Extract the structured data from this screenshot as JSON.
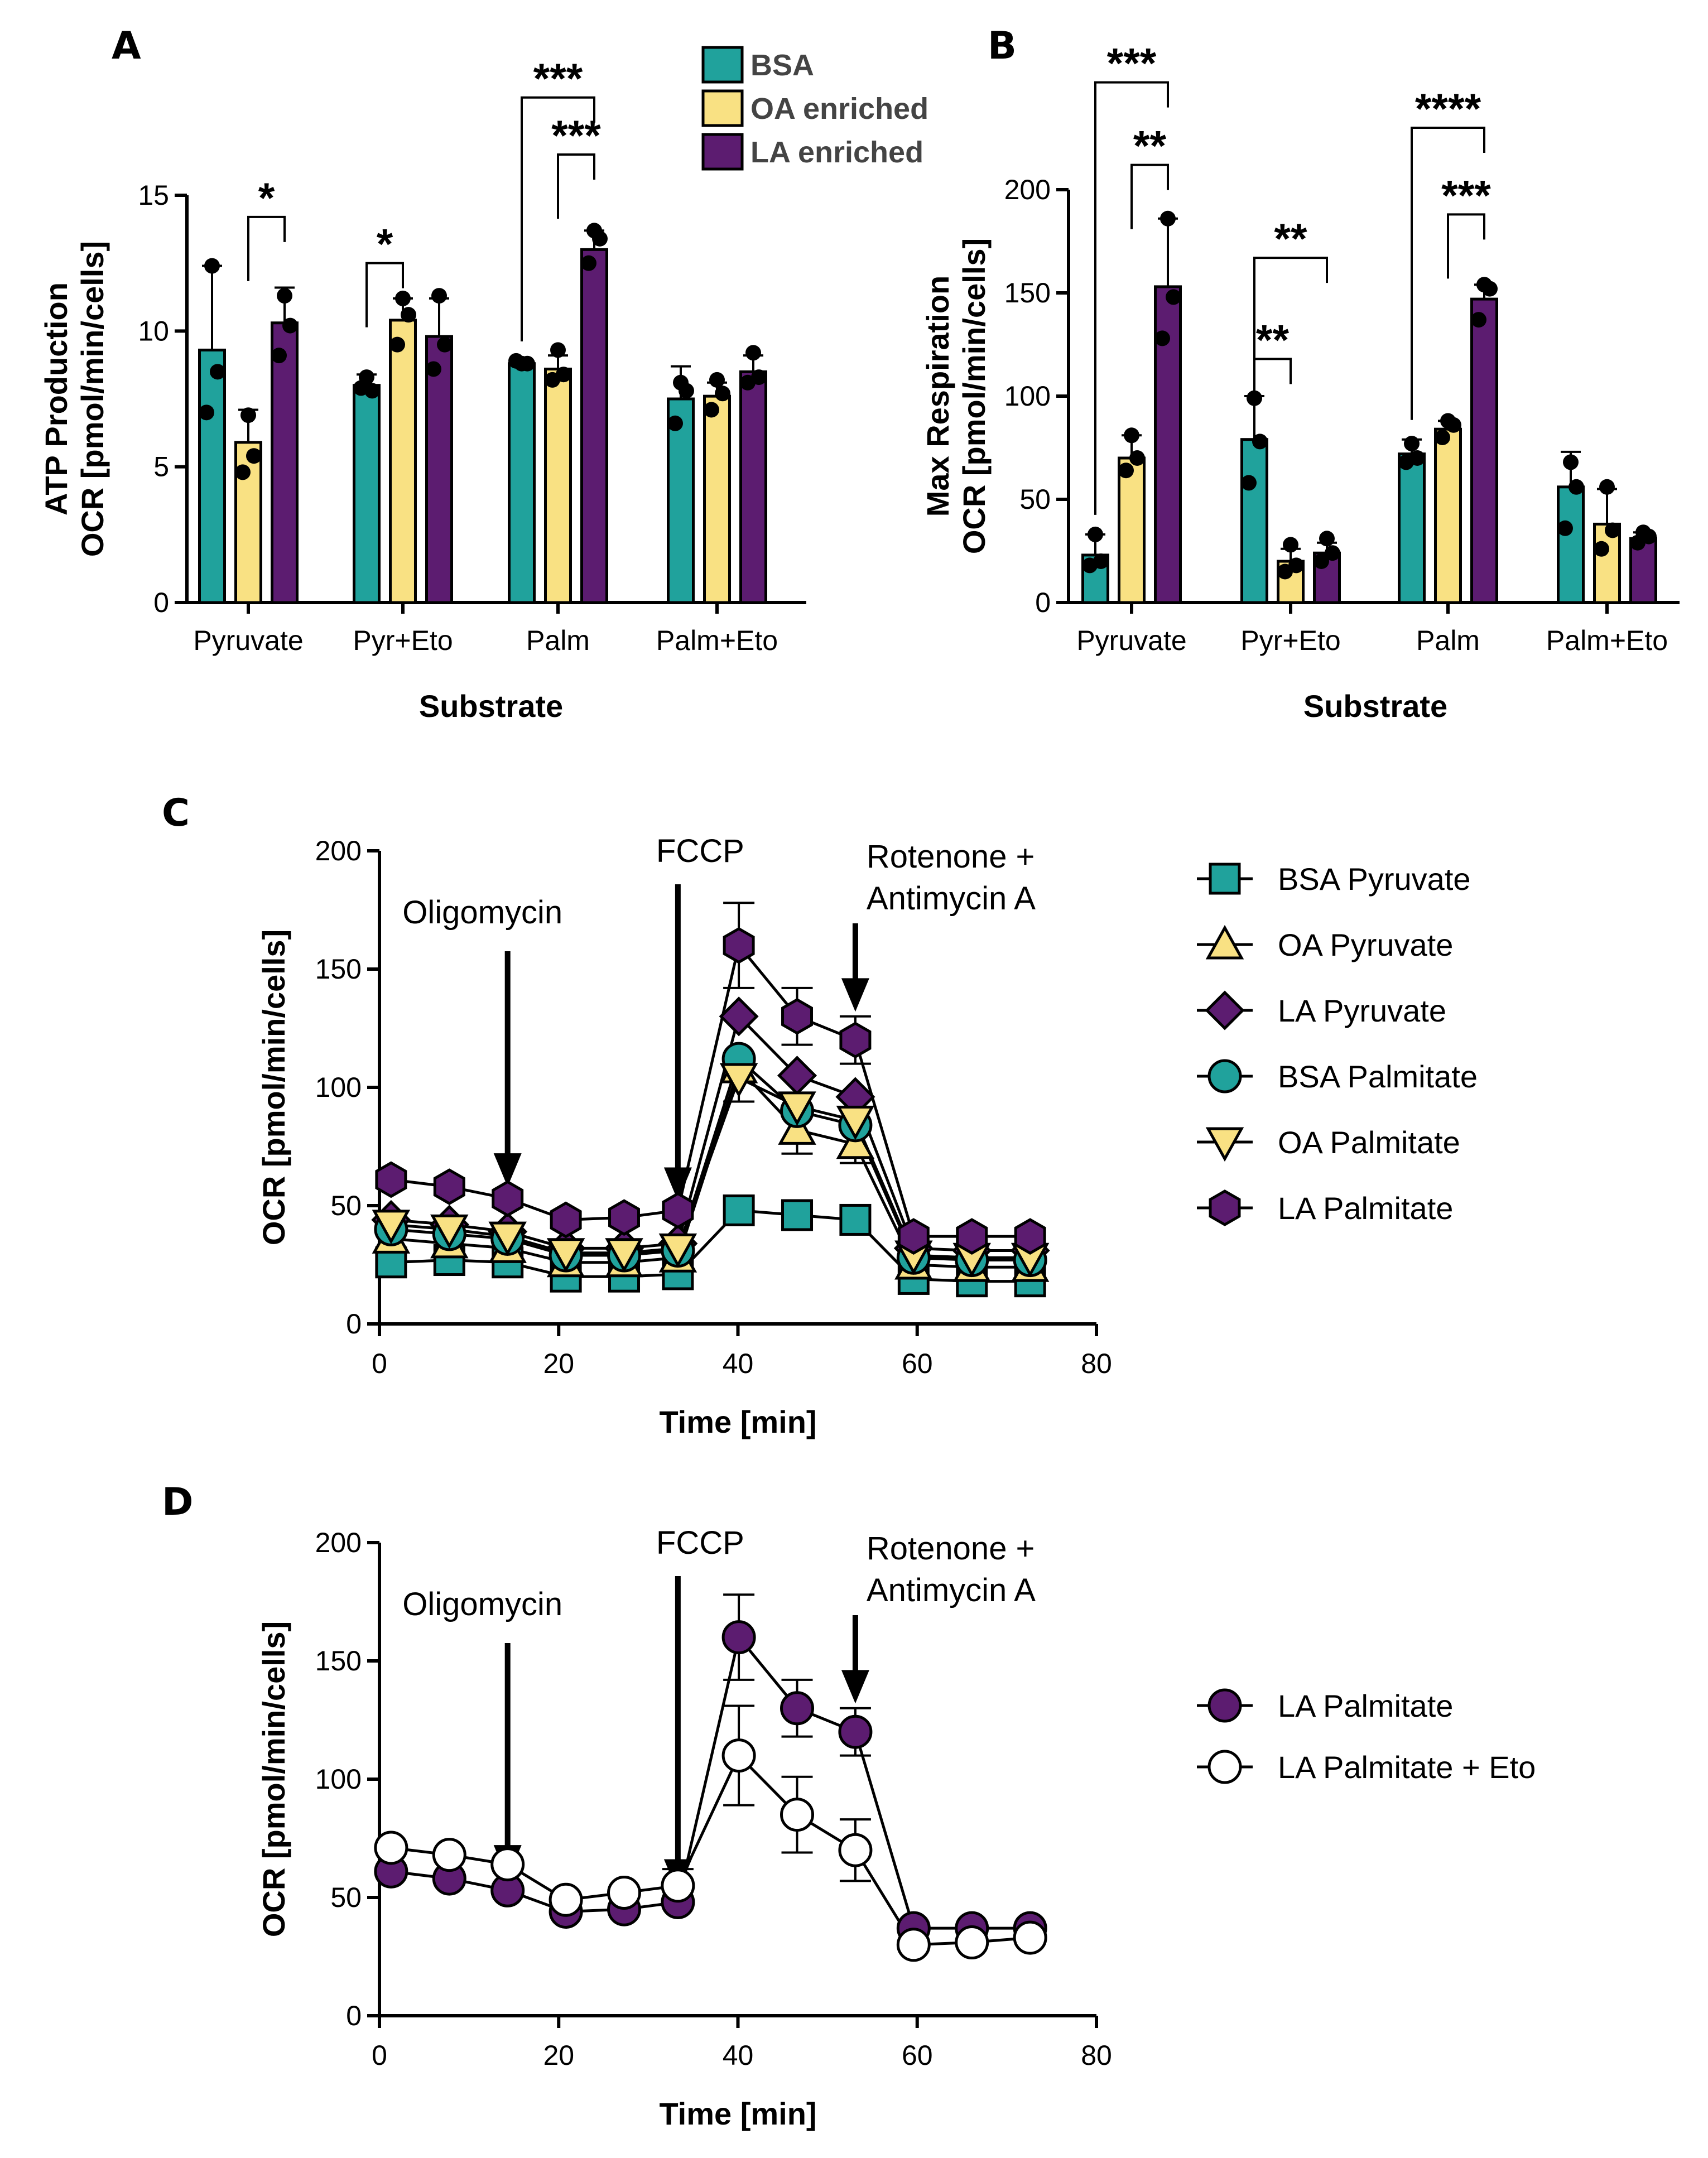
{
  "colors": {
    "teal": "#20a29c",
    "yellow": "#f9e183",
    "purple": "#5c1c70",
    "black": "#000000",
    "white": "#ffffff"
  },
  "legend_bars": [
    {
      "label": "BSA",
      "color": "#20a29c"
    },
    {
      "label": "OA enriched",
      "color": "#f9e183"
    },
    {
      "label": "LA enriched",
      "color": "#5c1c70"
    }
  ],
  "chart_data": [
    {
      "panel": "A",
      "type": "bar",
      "xlabel": "Substrate",
      "ylabel_line1": "ATP Production",
      "ylabel_line2": "OCR [pmol/min/cells]",
      "ylim": [
        0,
        15
      ],
      "yticks": [
        0,
        5,
        10,
        15
      ],
      "categories": [
        "Pyruvate",
        "Pyr+Eto",
        "Palm",
        "Palm+Eto"
      ],
      "series": [
        {
          "name": "BSA",
          "values": [
            9.3,
            8.0,
            8.8,
            7.5
          ],
          "errors": [
            3.1,
            0.4,
            0.1,
            1.2
          ],
          "points": [
            [
              12.4,
              8.5,
              7.0
            ],
            [
              8.3,
              7.8,
              7.9
            ],
            [
              8.8,
              8.8,
              8.9
            ],
            [
              8.1,
              7.8,
              6.6
            ]
          ]
        },
        {
          "name": "OA enriched",
          "values": [
            5.9,
            10.4,
            8.6,
            7.6
          ],
          "errors": [
            1.2,
            0.8,
            0.5,
            0.5
          ],
          "points": [
            [
              6.9,
              5.4,
              4.8
            ],
            [
              11.2,
              10.6,
              9.5
            ],
            [
              9.3,
              8.4,
              8.2
            ],
            [
              8.2,
              7.7,
              7.1
            ]
          ]
        },
        {
          "name": "LA enriched",
          "values": [
            10.3,
            9.8,
            13.0,
            8.5
          ],
          "errors": [
            1.3,
            1.4,
            0.7,
            0.6
          ],
          "points": [
            [
              11.3,
              10.2,
              9.1
            ],
            [
              11.3,
              9.5,
              8.6
            ],
            [
              13.7,
              13.4,
              12.5
            ],
            [
              9.2,
              8.3,
              8.1
            ]
          ]
        }
      ],
      "brackets": [
        {
          "from": [
            "Pyruvate",
            1
          ],
          "to": [
            "Pyruvate",
            2
          ],
          "level": 14.2,
          "label": "*"
        },
        {
          "from": [
            "Pyr+Eto",
            0
          ],
          "to": [
            "Pyr+Eto",
            1
          ],
          "level": 12.5,
          "label": "*"
        },
        {
          "from": [
            "Palm",
            0
          ],
          "to": [
            "Palm",
            2
          ],
          "level": 18.6,
          "label": "***"
        },
        {
          "from": [
            "Palm",
            1
          ],
          "to": [
            "Palm",
            2
          ],
          "level": 16.5,
          "label": "***"
        }
      ]
    },
    {
      "panel": "B",
      "type": "bar",
      "xlabel": "Substrate",
      "ylabel_line1": "Max Respiration",
      "ylabel_line2": "OCR [pmol/min/cells]",
      "ylim": [
        0,
        200
      ],
      "yticks": [
        0,
        50,
        100,
        150,
        200
      ],
      "categories": [
        "Pyruvate",
        "Pyr+Eto",
        "Palm",
        "Palm+Eto"
      ],
      "series": [
        {
          "name": "BSA",
          "values": [
            23,
            79,
            72,
            56
          ],
          "errors": [
            10,
            21,
            7,
            17
          ],
          "points": [
            [
              33,
              20,
              18
            ],
            [
              99,
              78,
              58
            ],
            [
              77,
              70,
              68
            ],
            [
              68,
              56,
              36
            ]
          ]
        },
        {
          "name": "OA enriched",
          "values": [
            70,
            20,
            84,
            38
          ],
          "errors": [
            11,
            6,
            4,
            17
          ],
          "points": [
            [
              81,
              70,
              64
            ],
            [
              28,
              18,
              15
            ],
            [
              88,
              86,
              80
            ],
            [
              56,
              35,
              26
            ]
          ]
        },
        {
          "name": "LA enriched",
          "values": [
            153,
            24,
            147,
            31
          ],
          "errors": [
            33,
            5,
            7,
            3
          ],
          "points": [
            [
              186,
              148,
              128
            ],
            [
              31,
              24,
              20
            ],
            [
              154,
              152,
              137
            ],
            [
              34,
              32,
              29
            ]
          ]
        }
      ],
      "brackets": [
        {
          "from": [
            "Pyruvate",
            0
          ],
          "to": [
            "Pyruvate",
            2
          ],
          "level": 252,
          "label": "***"
        },
        {
          "from": [
            "Pyruvate",
            1
          ],
          "to": [
            "Pyruvate",
            2
          ],
          "level": 212,
          "label": "**"
        },
        {
          "from": [
            "Pyr+Eto",
            0
          ],
          "to": [
            "Pyr+Eto",
            2
          ],
          "level": 167,
          "label": "**"
        },
        {
          "from": [
            "Pyr+Eto",
            0
          ],
          "to": [
            "Pyr+Eto",
            1
          ],
          "level": 118,
          "label": "**"
        },
        {
          "from": [
            "Palm",
            0
          ],
          "to": [
            "Palm",
            2
          ],
          "level": 230,
          "label": "****"
        },
        {
          "from": [
            "Palm",
            1
          ],
          "to": [
            "Palm",
            2
          ],
          "level": 188,
          "label": "***"
        }
      ]
    },
    {
      "panel": "C",
      "type": "line",
      "xlabel": "Time [min]",
      "ylabel": "OCR [pmol/min/cells]",
      "xlim": [
        0,
        80
      ],
      "ylim": [
        0,
        200
      ],
      "xticks": [
        0,
        20,
        40,
        60,
        80
      ],
      "yticks": [
        0,
        50,
        100,
        150,
        200
      ],
      "x": [
        1.3,
        7.8,
        14.3,
        20.8,
        27.3,
        33.3,
        40.1,
        46.6,
        53.1,
        59.6,
        66.1,
        72.6
      ],
      "injections": [
        {
          "x": 14.3,
          "label_lines": [
            "Oligomycin"
          ]
        },
        {
          "x": 33.3,
          "label_lines": [
            "FCCP"
          ]
        },
        {
          "x": 53.1,
          "label_lines": [
            "Rotenone +",
            "Antimycin A"
          ]
        }
      ],
      "series": [
        {
          "name": "BSA Pyruvate",
          "marker": "square",
          "color": "#20a29c",
          "values": [
            26,
            27,
            26,
            20,
            20,
            21,
            48,
            46,
            44,
            19,
            18,
            18
          ]
        },
        {
          "name": "OA Pyruvate",
          "marker": "triangle-up",
          "color": "#f9e183",
          "values": [
            36,
            34,
            32,
            26,
            26,
            28,
            108,
            82,
            76,
            25,
            24,
            24
          ]
        },
        {
          "name": "LA Pyruvate",
          "marker": "diamond",
          "color": "#5c1c70",
          "values": [
            44,
            42,
            39,
            32,
            32,
            34,
            130,
            105,
            96,
            32,
            31,
            31
          ]
        },
        {
          "name": "BSA Palmitate",
          "marker": "circle",
          "color": "#20a29c",
          "values": [
            40,
            38,
            36,
            29,
            29,
            31,
            112,
            90,
            84,
            28,
            27,
            27
          ]
        },
        {
          "name": "OA Palmitate",
          "marker": "triangle-down",
          "color": "#f9e183",
          "values": [
            42,
            40,
            37,
            30,
            30,
            32,
            104,
            92,
            86,
            29,
            28,
            28
          ]
        },
        {
          "name": "LA Palmitate",
          "marker": "hexagon",
          "color": "#5c1c70",
          "values": [
            61,
            58,
            53,
            44,
            45,
            48,
            160,
            130,
            120,
            37,
            37,
            37
          ]
        }
      ],
      "errors_top": [
        {
          "x": 40.1,
          "value": 160,
          "error": 18
        },
        {
          "x": 46.6,
          "value": 130,
          "error": 12
        },
        {
          "x": 53.1,
          "value": 120,
          "error": 10
        },
        {
          "x": 40.1,
          "value": 104,
          "error": 10
        },
        {
          "x": 46.6,
          "value": 82,
          "error": 10
        },
        {
          "x": 53.1,
          "value": 76,
          "error": 8
        }
      ]
    },
    {
      "panel": "D",
      "type": "line",
      "xlabel": "Time [min]",
      "ylabel": "OCR [pmol/min/cells]",
      "xlim": [
        0,
        80
      ],
      "ylim": [
        0,
        200
      ],
      "xticks": [
        0,
        20,
        40,
        60,
        80
      ],
      "yticks": [
        0,
        50,
        100,
        150,
        200
      ],
      "x": [
        1.3,
        7.8,
        14.3,
        20.8,
        27.3,
        33.3,
        40.1,
        46.6,
        53.1,
        59.6,
        66.1,
        72.6
      ],
      "injections": [
        {
          "x": 14.3,
          "label_lines": [
            "Oligomycin"
          ]
        },
        {
          "x": 33.3,
          "label_lines": [
            "FCCP"
          ]
        },
        {
          "x": 53.1,
          "label_lines": [
            "Rotenone +",
            "Antimycin A"
          ]
        }
      ],
      "series": [
        {
          "name": "LA Palmitate",
          "marker": "circle",
          "color": "#5c1c70",
          "values": [
            61,
            58,
            53,
            44,
            45,
            48,
            160,
            130,
            120,
            37,
            37,
            37
          ],
          "errors": [
            3,
            2,
            2,
            2,
            2,
            3,
            18,
            12,
            10,
            2,
            2,
            2
          ]
        },
        {
          "name": "LA Palmitate + Eto",
          "marker": "circle",
          "color": "#ffffff",
          "values": [
            71,
            68,
            64,
            49,
            52,
            55,
            110,
            85,
            70,
            30,
            31,
            33
          ],
          "errors": [
            3,
            3,
            3,
            3,
            3,
            7,
            21,
            16,
            13,
            2,
            2,
            2
          ]
        }
      ]
    }
  ]
}
